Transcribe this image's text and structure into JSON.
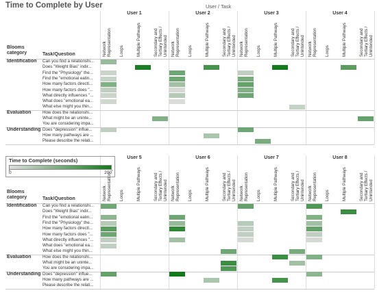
{
  "chart_data": {
    "type": "heatmap",
    "title": "Time to Complete by User",
    "column_header": "User / Task",
    "row_headers": [
      "Blooms category",
      "Task/Question"
    ],
    "tasks": [
      "Network Representation",
      "Loops",
      "Multiple Pathways",
      "Secondary and Tertiary Effects / Unintended conse..."
    ],
    "clim": [
      0,
      200
    ],
    "colors": [
      "#dedede",
      "#137a1b"
    ],
    "legend": {
      "title": "Time to Complete (seconds)",
      "ticks": [
        0,
        200
      ]
    },
    "panels": [
      {
        "users": [
          "User 1",
          "User 2",
          "User 3",
          "User 4"
        ],
        "groups": [
          {
            "category": "Identification",
            "rows": [
              {
                "question": "Can you find a relationshi...",
                "values": [
                  70,
                  null,
                  null,
                  null,
                  null,
                  null,
                  null,
                  null,
                  null,
                  null,
                  null,
                  null,
                  null,
                  null,
                  null,
                  null
                ]
              },
              {
                "question": "Does \"Weight Bias\" indir...",
                "values": [
                  null,
                  null,
                  190,
                  null,
                  null,
                  null,
                  150,
                  null,
                  null,
                  null,
                  200,
                  null,
                  null,
                  null,
                  130,
                  null
                ]
              },
              {
                "question": "Find the \"Physiology\" the...",
                "values": [
                  20,
                  null,
                  null,
                  null,
                  110,
                  null,
                  null,
                  null,
                  30,
                  null,
                  null,
                  null,
                  null,
                  null,
                  null,
                  null
                ]
              },
              {
                "question": "Find the \"emotional eatin...",
                "values": [
                  25,
                  null,
                  null,
                  null,
                  110,
                  null,
                  null,
                  null,
                  100,
                  null,
                  null,
                  null,
                  null,
                  null,
                  null,
                  null
                ]
              },
              {
                "question": "How many factors directl...",
                "values": [
                  90,
                  null,
                  null,
                  null,
                  60,
                  null,
                  null,
                  null,
                  120,
                  null,
                  null,
                  null,
                  null,
                  null,
                  null,
                  null
                ]
              },
              {
                "question": "How many factors does \"...",
                "values": [
                  30,
                  null,
                  null,
                  null,
                  10,
                  null,
                  null,
                  null,
                  90,
                  null,
                  null,
                  null,
                  null,
                  null,
                  null,
                  null
                ]
              },
              {
                "question": "What directly influences \"...",
                "values": [
                  20,
                  null,
                  null,
                  null,
                  40,
                  null,
                  null,
                  null,
                  110,
                  null,
                  null,
                  null,
                  null,
                  null,
                  null,
                  null
                ]
              },
              {
                "question": "What does \"emotional ea...",
                "values": [
                  15,
                  null,
                  null,
                  null,
                  5,
                  null,
                  null,
                  null,
                  null,
                  null,
                  null,
                  null,
                  null,
                  null,
                  null,
                  null
                ]
              },
              {
                "question": "What else might you thin...",
                "values": [
                  null,
                  null,
                  null,
                  null,
                  null,
                  null,
                  null,
                  null,
                  null,
                  null,
                  null,
                  25,
                  null,
                  null,
                  null,
                  null
                ]
              }
            ]
          },
          {
            "category": "Evaluation",
            "rows": [
              {
                "question": "How does the relationshi...",
                "values": [
                  null,
                  null,
                  null,
                  null,
                  null,
                  null,
                  null,
                  null,
                  null,
                  null,
                  null,
                  null,
                  null,
                  null,
                  null,
                  null
                ]
              },
              {
                "question": "What might be an uninte...",
                "values": [
                  null,
                  null,
                  null,
                  90,
                  null,
                  null,
                  null,
                  null,
                  null,
                  null,
                  null,
                  null,
                  null,
                  null,
                  null,
                  120
                ]
              },
              {
                "question": "You are considering impa...",
                "values": [
                  null,
                  null,
                  null,
                  null,
                  null,
                  null,
                  null,
                  null,
                  null,
                  null,
                  null,
                  null,
                  null,
                  null,
                  null,
                  null
                ]
              }
            ]
          },
          {
            "category": "Understanding",
            "rows": [
              {
                "question": "Does \"depression\" influe...",
                "values": [
                  30,
                  null,
                  null,
                  null,
                  null,
                  null,
                  null,
                  null,
                  110,
                  null,
                  null,
                  null,
                  null,
                  null,
                  null,
                  null
                ]
              },
              {
                "question": "How many pathways are ...",
                "values": [
                  null,
                  null,
                  null,
                  null,
                  null,
                  null,
                  50,
                  null,
                  null,
                  null,
                  null,
                  null,
                  null,
                  null,
                  null,
                  null
                ]
              },
              {
                "question": "Please describe the relati...",
                "values": [
                  null,
                  null,
                  null,
                  null,
                  null,
                  null,
                  null,
                  null,
                  null,
                  100,
                  null,
                  null,
                  null,
                  null,
                  null,
                  null
                ]
              }
            ]
          }
        ]
      },
      {
        "users": [
          "User 5",
          "User 6",
          "User 7",
          "User 8"
        ],
        "groups": [
          {
            "category": "Identification",
            "rows": [
              {
                "question": "Can you find a relationshi...",
                "values": [
                  110,
                  null,
                  null,
                  null,
                  null,
                  null,
                  null,
                  null,
                  120,
                  null,
                  null,
                  null,
                  140,
                  null,
                  null,
                  null
                ]
              },
              {
                "question": "Does \"Weight Bias\" indir...",
                "values": [
                  null,
                  null,
                  null,
                  null,
                  null,
                  null,
                  null,
                  null,
                  null,
                  null,
                  null,
                  null,
                  null,
                  null,
                  160,
                  null
                ]
              },
              {
                "question": "Find the \"emotional eatin...",
                "values": [
                  80,
                  null,
                  null,
                  null,
                  110,
                  null,
                  null,
                  null,
                  null,
                  null,
                  null,
                  null,
                  90,
                  null,
                  null,
                  null
                ]
              },
              {
                "question": "Find the \"Physiology\" the...",
                "values": [
                  40,
                  null,
                  null,
                  null,
                  70,
                  null,
                  null,
                  null,
                  40,
                  null,
                  null,
                  null,
                  60,
                  null,
                  null,
                  null
                ]
              },
              {
                "question": "How many factors directl...",
                "values": [
                  130,
                  null,
                  null,
                  null,
                  170,
                  null,
                  null,
                  null,
                  30,
                  null,
                  null,
                  null,
                  120,
                  null,
                  null,
                  null
                ]
              },
              {
                "question": "How many factors does \"...",
                "values": [
                  110,
                  null,
                  null,
                  null,
                  null,
                  null,
                  null,
                  null,
                  30,
                  null,
                  null,
                  null,
                  30,
                  null,
                  null,
                  null
                ]
              },
              {
                "question": "What directly influences \"...",
                "values": [
                  30,
                  null,
                  null,
                  null,
                  60,
                  null,
                  null,
                  null,
                  10,
                  null,
                  null,
                  null,
                  10,
                  null,
                  null,
                  null
                ]
              },
              {
                "question": "What does \"emotional ea...",
                "values": [
                  30,
                  null,
                  null,
                  null,
                  null,
                  null,
                  null,
                  null,
                  null,
                  null,
                  null,
                  null,
                  null,
                  null,
                  null,
                  null
                ]
              },
              {
                "question": "What else might you thin...",
                "values": [
                  null,
                  null,
                  null,
                  null,
                  null,
                  null,
                  null,
                  110,
                  null,
                  null,
                  null,
                  100,
                  null,
                  null,
                  null,
                  null
                ]
              }
            ]
          },
          {
            "category": "Evaluation",
            "rows": [
              {
                "question": "How does the relationshi...",
                "values": [
                  null,
                  null,
                  null,
                  null,
                  null,
                  null,
                  null,
                  null,
                  null,
                  null,
                  160,
                  null,
                  90,
                  null,
                  null,
                  null
                ]
              },
              {
                "question": "What might be an uninte...",
                "values": [
                  null,
                  null,
                  null,
                  null,
                  null,
                  null,
                  null,
                  160,
                  null,
                  null,
                  null,
                  60,
                  null,
                  null,
                  null,
                  null
                ]
              },
              {
                "question": "You are considering impa...",
                "values": [
                  null,
                  null,
                  null,
                  null,
                  null,
                  null,
                  null,
                  140,
                  null,
                  null,
                  null,
                  null,
                  null,
                  null,
                  null,
                  null
                ]
              }
            ]
          },
          {
            "category": "Understanding",
            "rows": [
              {
                "question": "Does \"depression\" influe...",
                "values": [
                  120,
                  null,
                  null,
                  null,
                  200,
                  null,
                  null,
                  null,
                  null,
                  null,
                  null,
                  null,
                  80,
                  null,
                  null,
                  null
                ]
              },
              {
                "question": "How many pathways are ...",
                "values": [
                  null,
                  null,
                  null,
                  null,
                  null,
                  null,
                  50,
                  null,
                  null,
                  null,
                  150,
                  null,
                  null,
                  null,
                  null,
                  null
                ]
              },
              {
                "question": "Please describe the relati...",
                "values": [
                  null,
                  null,
                  null,
                  null,
                  null,
                  null,
                  null,
                  null,
                  null,
                  null,
                  null,
                  null,
                  null,
                  null,
                  null,
                  null
                ]
              }
            ]
          }
        ]
      }
    ]
  }
}
